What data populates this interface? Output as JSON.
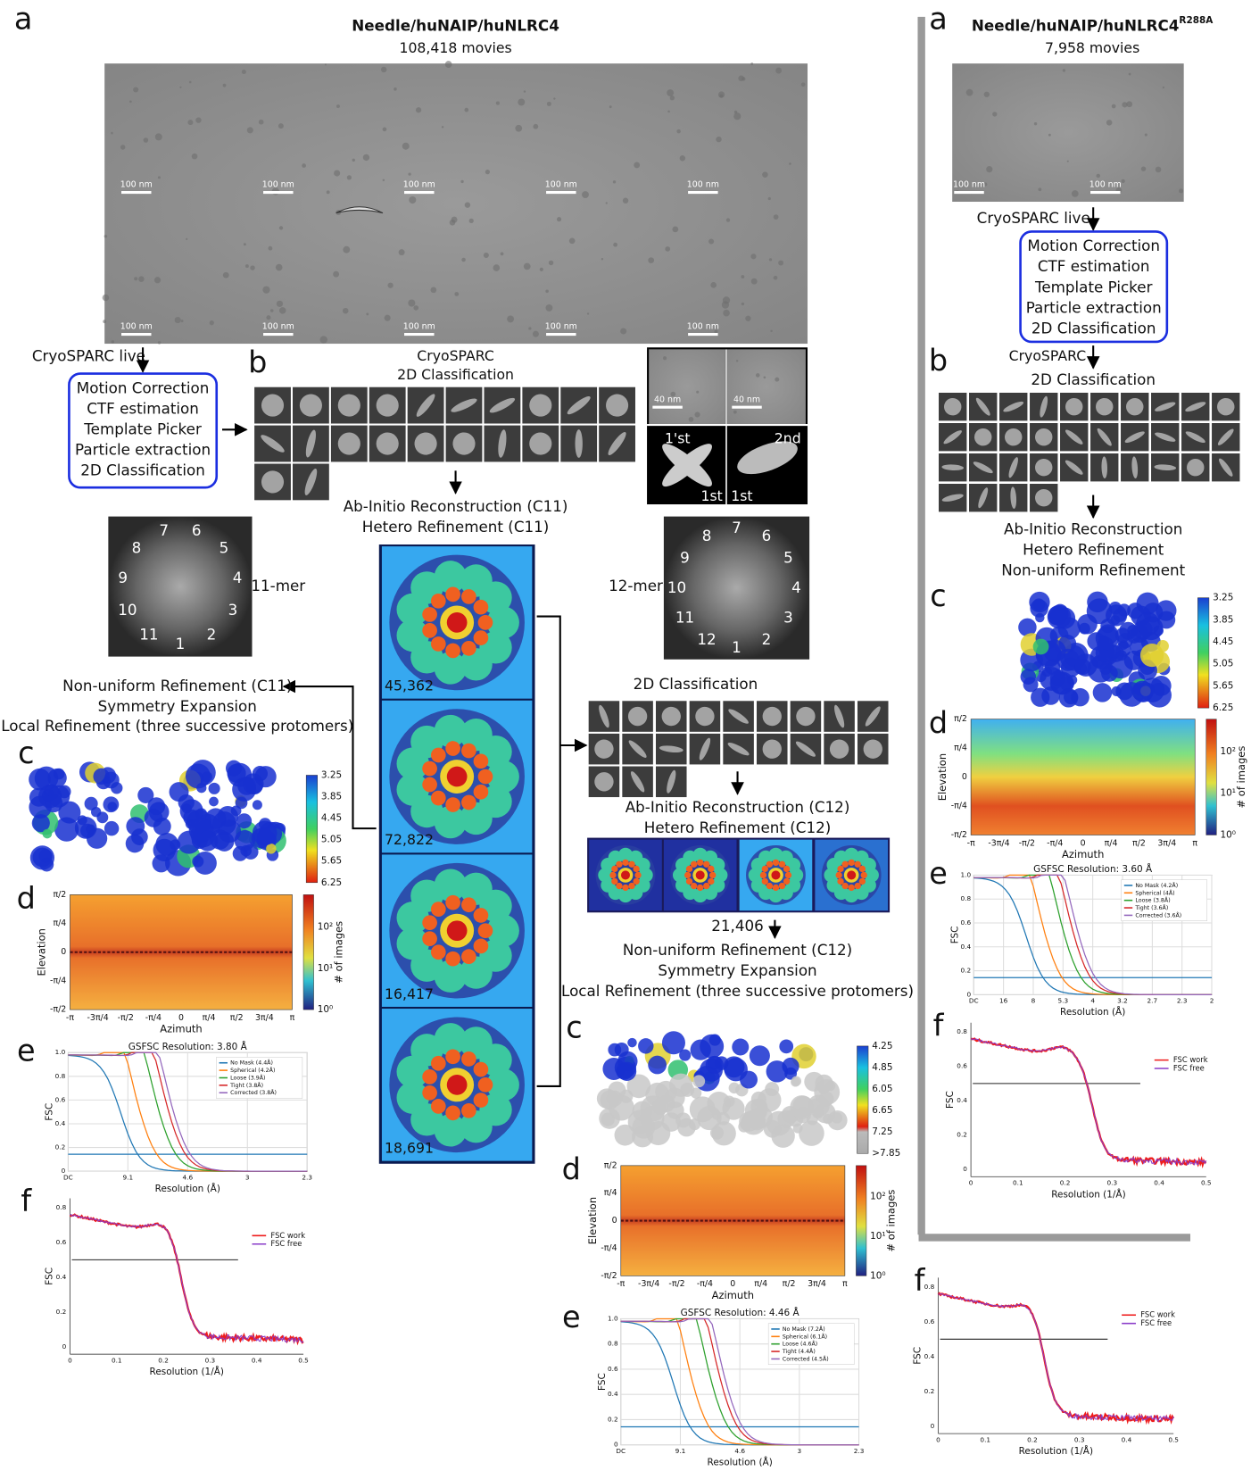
{
  "left": {
    "panel_a": "a",
    "title": "Needle/huNAIP/huNLRC4",
    "movies": "108,418 movies",
    "scale_bar": "100 nm",
    "live": "CryoSPARC live",
    "steps": [
      "Motion Correction",
      "CTF estimation",
      "Template Picker",
      "Particle extraction",
      "2D Classification"
    ],
    "panel_b": "b",
    "classification": [
      "CryoSPARC",
      "2D Classification"
    ],
    "inset": {
      "scale_bar": "40 nm",
      "labels": [
        "1'st",
        "2nd",
        "1st",
        "1st"
      ]
    },
    "reconstruction": [
      "Ab-Initio Reconstruction (C11)",
      "Hetero Refinement (C11)"
    ],
    "mer11": {
      "label": "11-mer",
      "numbers": [
        "1",
        "2",
        "3",
        "4",
        "5",
        "6",
        "7",
        "8",
        "9",
        "10",
        "11"
      ]
    },
    "mer12": {
      "label": "12-mer",
      "numbers": [
        "1",
        "2",
        "3",
        "4",
        "5",
        "6",
        "7",
        "8",
        "9",
        "10",
        "11",
        "12"
      ]
    },
    "class_counts": [
      "45,362",
      "72,822",
      "16,417",
      "18,691"
    ],
    "refinement": [
      "Non-uniform Refinement (C11)",
      "Symmetry Expansion",
      "Local Refinement (three successive protomers)"
    ],
    "c": {
      "letter": "c",
      "colorbar": [
        "3.25",
        "3.85",
        "4.45",
        "5.05",
        "5.65",
        "6.25"
      ]
    },
    "d": {
      "letter": "d",
      "ylabel": "Elevation",
      "xlabel": "Azimuth",
      "yticks": [
        "π/2",
        "π/4",
        "0",
        "-π/4",
        "-π/2"
      ],
      "xticks": [
        "-π",
        "-3π/4",
        "-π/2",
        "-π/4",
        "0",
        "π/4",
        "π/2",
        "3π/4",
        "π"
      ],
      "cbar_label": "# of images",
      "cbar_ticks": [
        "10²",
        "10¹",
        "10⁰"
      ]
    },
    "e": {
      "letter": "e",
      "title": "GSFSC Resolution: 3.80 Å",
      "ylabel": "FSC",
      "xlabel": "Resolution (Å)",
      "yticks": [
        "1.0",
        "0.8",
        "0.6",
        "0.4",
        "0.2",
        "0"
      ],
      "xticks": [
        "DC",
        "9.1",
        "4.6",
        "3",
        "2.3"
      ],
      "legend": [
        "No Mask (4.4Å)",
        "Spherical (4.2Å)",
        "Loose (3.9Å)",
        "Tight (3.8Å)",
        "Corrected (3.8Å)"
      ]
    },
    "f": {
      "letter": "f",
      "ylabel": "FSC",
      "xlabel": "Resolution (1/Å)",
      "yticks": [
        "0.8",
        "0.6",
        "0.4",
        "0.2",
        "0"
      ],
      "xticks": [
        "0",
        "0.1",
        "0.2",
        "0.3",
        "0.4",
        "0.5"
      ],
      "legend": [
        "FSC work",
        "FSC free"
      ]
    }
  },
  "middle": {
    "classification": "2D Classification",
    "reconstruction": [
      "Ab-Initio Reconstruction (C12)",
      "Hetero Refinement (C12)"
    ],
    "count": "21,406",
    "refinement": [
      "Non-uniform Refinement (C12)",
      "Symmetry Expansion",
      "Local Refinement (three successive protomers)"
    ],
    "c": {
      "letter": "c",
      "colorbar": [
        "4.25",
        "4.85",
        "6.05",
        "6.65",
        "7.25",
        ">7.85"
      ]
    },
    "d": {
      "letter": "d",
      "ylabel": "Elevation",
      "xlabel": "Azimuth",
      "yticks": [
        "π/2",
        "π/4",
        "0",
        "-π/4",
        "-π/2"
      ],
      "xticks": [
        "-π",
        "-3π/4",
        "-π/2",
        "-π/4",
        "0",
        "π/4",
        "π/2",
        "3π/4",
        "π"
      ],
      "cbar_label": "# of images",
      "cbar_ticks": [
        "10²",
        "10¹",
        "10⁰"
      ]
    },
    "e": {
      "letter": "e",
      "title": "GSFSC Resolution: 4.46 Å",
      "ylabel": "FSC",
      "xlabel": "Resolution (Å)",
      "yticks": [
        "1.0",
        "0.8",
        "0.6",
        "0.4",
        "0.2",
        "0"
      ],
      "xticks": [
        "DC",
        "9.1",
        "4.6",
        "3",
        "2.3"
      ],
      "legend": [
        "No Mask (7.2Å)",
        "Spherical (6.1Å)",
        "Loose (4.6Å)",
        "Tight (4.4Å)",
        "Corrected (4.5Å)"
      ]
    }
  },
  "right": {
    "panel_a": "a",
    "title": "Needle/huNAIP/huNLRC4",
    "title_sup": "R288A",
    "movies": "7,958 movies",
    "scale_bar": "100 nm",
    "live": "CryoSPARC live",
    "steps": [
      "Motion Correction",
      "CTF estimation",
      "Template Picker",
      "Particle extraction",
      "2D Classification"
    ],
    "panel_b": "b",
    "classification": [
      "CryoSPARC",
      "2D Classification"
    ],
    "reconstruction": [
      "Ab-Initio Reconstruction",
      "Hetero Refinement",
      "Non-uniform Refinement"
    ],
    "c": {
      "letter": "c",
      "colorbar": [
        "3.25",
        "3.85",
        "4.45",
        "5.05",
        "5.65",
        "6.25"
      ]
    },
    "d": {
      "letter": "d",
      "ylabel": "Elevation",
      "xlabel": "Azimuth",
      "yticks": [
        "π/2",
        "π/4",
        "0",
        "-π/4",
        "-π/2"
      ],
      "xticks": [
        "-π",
        "-3π/4",
        "-π/2",
        "-π/4",
        "0",
        "π/4",
        "π/2",
        "3π/4",
        "π"
      ],
      "cbar_label": "# of images",
      "cbar_ticks": [
        "10²",
        "10¹",
        "10⁰"
      ]
    },
    "e": {
      "letter": "e",
      "title": "GSFSC Resolution: 3.60 Å",
      "ylabel": "FSC",
      "xlabel": "Resolution (Å)",
      "yticks": [
        "1.0",
        "0.8",
        "0.6",
        "0.4",
        "0.2",
        "0"
      ],
      "xticks": [
        "DC",
        "16",
        "8",
        "5.3",
        "4",
        "3.2",
        "2.7",
        "2.3",
        "2"
      ],
      "legend": [
        "No Mask (4.2Å)",
        "Spherical (4Å)",
        "Loose (3.8Å)",
        "Tight (3.6Å)",
        "Corrected (3.6Å)"
      ]
    },
    "f": {
      "letter": "f",
      "ylabel": "FSC",
      "xlabel": "Resolution (1/Å)",
      "yticks": [
        "0.8",
        "0.6",
        "0.4",
        "0.2",
        "0"
      ],
      "xticks": [
        "0",
        "0.1",
        "0.2",
        "0.3",
        "0.4",
        "0.5"
      ],
      "legend": [
        "FSC work",
        "FSC free"
      ]
    }
  },
  "bottom_right": {
    "f": {
      "letter": "f",
      "ylabel": "FSC",
      "xlabel": "Resolution (1/Å)",
      "yticks": [
        "0.8",
        "0.6",
        "0.4",
        "0.2",
        "0"
      ],
      "xticks": [
        "0",
        "0.1",
        "0.2",
        "0.3",
        "0.4",
        "0.5"
      ],
      "legend": [
        "FSC work",
        "FSC free"
      ]
    }
  }
}
